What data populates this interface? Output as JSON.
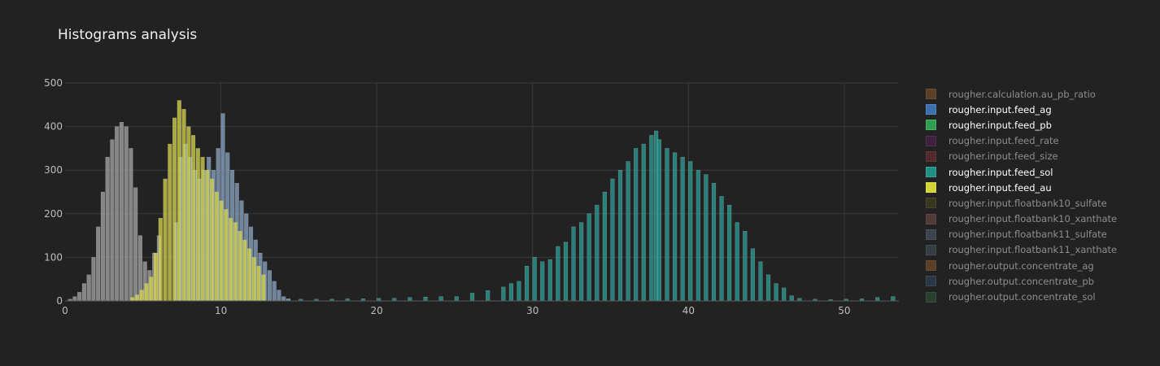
{
  "chart_data": {
    "type": "histogram",
    "title": "Histograms analysis",
    "xlabel": "",
    "ylabel": "",
    "xlim": [
      0,
      53.5
    ],
    "ylim": [
      0,
      500
    ],
    "x_ticks": [
      0,
      10,
      20,
      30,
      40,
      50
    ],
    "y_ticks": [
      0,
      100,
      200,
      300,
      400,
      500
    ],
    "grid": true,
    "legend_position": "right",
    "bars_visible": {
      "bin_width": 0.28,
      "series": [
        {
          "name": "rougher.input.feed_ag",
          "color": "#8aa8c8",
          "bins": [
            [
              7.0,
              180
            ],
            [
              7.3,
              330
            ],
            [
              7.6,
              360
            ],
            [
              7.9,
              330
            ],
            [
              8.2,
              300
            ],
            [
              8.5,
              280
            ],
            [
              8.8,
              300
            ],
            [
              9.1,
              330
            ],
            [
              9.4,
              300
            ],
            [
              9.7,
              350
            ],
            [
              10.0,
              430
            ],
            [
              10.3,
              340
            ],
            [
              10.6,
              300
            ],
            [
              10.9,
              270
            ],
            [
              11.2,
              230
            ],
            [
              11.5,
              200
            ],
            [
              11.8,
              170
            ],
            [
              12.1,
              140
            ],
            [
              12.4,
              110
            ],
            [
              12.7,
              90
            ],
            [
              13.0,
              70
            ],
            [
              13.3,
              45
            ],
            [
              13.6,
              25
            ],
            [
              13.9,
              10
            ],
            [
              14.2,
              5
            ]
          ]
        },
        {
          "name": "rougher.input.feed_pb",
          "color": "#a8a8a8",
          "bins": [
            [
              0.2,
              4
            ],
            [
              0.5,
              10
            ],
            [
              0.8,
              20
            ],
            [
              1.1,
              40
            ],
            [
              1.4,
              60
            ],
            [
              1.7,
              100
            ],
            [
              2.0,
              170
            ],
            [
              2.3,
              250
            ],
            [
              2.6,
              330
            ],
            [
              2.9,
              370
            ],
            [
              3.2,
              400
            ],
            [
              3.5,
              410
            ],
            [
              3.8,
              400
            ],
            [
              4.1,
              350
            ],
            [
              4.4,
              260
            ],
            [
              4.7,
              150
            ],
            [
              5.0,
              90
            ],
            [
              5.3,
              70
            ],
            [
              5.6,
              110
            ],
            [
              5.9,
              150
            ]
          ]
        },
        {
          "name": "rougher.input.feed_sol",
          "color": "#2aa198",
          "bins": [
            [
              14.2,
              3
            ],
            [
              15.0,
              4
            ],
            [
              16.0,
              4
            ],
            [
              17.0,
              4
            ],
            [
              18.0,
              5
            ],
            [
              19.0,
              5
            ],
            [
              20.0,
              6
            ],
            [
              21.0,
              6
            ],
            [
              22.0,
              8
            ],
            [
              23.0,
              9
            ],
            [
              24.0,
              10
            ],
            [
              25.0,
              10
            ],
            [
              26.0,
              18
            ],
            [
              27.0,
              24
            ],
            [
              28.0,
              32
            ],
            [
              28.5,
              40
            ],
            [
              29.0,
              45
            ],
            [
              29.5,
              80
            ],
            [
              30.0,
              100
            ],
            [
              30.5,
              90
            ],
            [
              31.0,
              95
            ],
            [
              31.5,
              125
            ],
            [
              32.0,
              135
            ],
            [
              32.5,
              170
            ],
            [
              33.0,
              180
            ],
            [
              33.5,
              200
            ],
            [
              34.0,
              220
            ],
            [
              34.5,
              250
            ],
            [
              35.0,
              280
            ],
            [
              35.5,
              300
            ],
            [
              36.0,
              320
            ],
            [
              36.5,
              350
            ],
            [
              37.0,
              360
            ],
            [
              37.5,
              380
            ],
            [
              37.8,
              390
            ],
            [
              38.0,
              370
            ],
            [
              38.5,
              350
            ],
            [
              39.0,
              340
            ],
            [
              39.5,
              330
            ],
            [
              40.0,
              320
            ],
            [
              40.5,
              300
            ],
            [
              41.0,
              290
            ],
            [
              41.5,
              270
            ],
            [
              42.0,
              240
            ],
            [
              42.5,
              220
            ],
            [
              43.0,
              180
            ],
            [
              43.5,
              160
            ],
            [
              44.0,
              120
            ],
            [
              44.5,
              90
            ],
            [
              45.0,
              60
            ],
            [
              45.5,
              40
            ],
            [
              46.0,
              30
            ],
            [
              46.5,
              12
            ],
            [
              47.0,
              6
            ],
            [
              48.0,
              4
            ],
            [
              49.0,
              3
            ],
            [
              50.0,
              4
            ],
            [
              51.0,
              5
            ],
            [
              52.0,
              8
            ],
            [
              53.0,
              10
            ]
          ]
        },
        {
          "name": "rougher.input.feed_au",
          "color": "#d8d84a",
          "bins": [
            [
              4.2,
              8
            ],
            [
              4.5,
              14
            ],
            [
              4.8,
              25
            ],
            [
              5.1,
              40
            ],
            [
              5.4,
              55
            ],
            [
              5.7,
              110
            ],
            [
              6.0,
              190
            ],
            [
              6.3,
              280
            ],
            [
              6.6,
              360
            ],
            [
              6.9,
              420
            ],
            [
              7.2,
              460
            ],
            [
              7.5,
              440
            ],
            [
              7.8,
              400
            ],
            [
              8.1,
              380
            ],
            [
              8.4,
              350
            ],
            [
              8.7,
              330
            ],
            [
              9.0,
              300
            ],
            [
              9.3,
              280
            ],
            [
              9.6,
              250
            ],
            [
              9.9,
              230
            ],
            [
              10.2,
              210
            ],
            [
              10.5,
              190
            ],
            [
              10.8,
              180
            ],
            [
              11.1,
              160
            ],
            [
              11.4,
              140
            ],
            [
              11.7,
              120
            ],
            [
              12.0,
              100
            ],
            [
              12.3,
              80
            ],
            [
              12.6,
              60
            ]
          ]
        }
      ]
    },
    "legend_entries": [
      {
        "name": "rougher.calculation.au_pb_ratio",
        "color": "#8a5a2b",
        "visible": false
      },
      {
        "name": "rougher.input.feed_ag",
        "color": "#3a6fb0",
        "visible": true
      },
      {
        "name": "rougher.input.feed_pb",
        "color": "#2e9e4f",
        "visible": true
      },
      {
        "name": "rougher.input.feed_rate",
        "color": "#5a1f5a",
        "visible": false
      },
      {
        "name": "rougher.input.feed_size",
        "color": "#7a2f35",
        "visible": false
      },
      {
        "name": "rougher.input.feed_sol",
        "color": "#1f8f86",
        "visible": true
      },
      {
        "name": "rougher.input.feed_au",
        "color": "#d4d434",
        "visible": true
      },
      {
        "name": "rougher.input.floatbank10_sulfate",
        "color": "#4a4a1a",
        "visible": false
      },
      {
        "name": "rougher.input.floatbank10_xanthate",
        "color": "#7a4f48",
        "visible": false
      },
      {
        "name": "rougher.input.floatbank11_sulfate",
        "color": "#4f5f73",
        "visible": false
      },
      {
        "name": "rougher.input.floatbank11_xanthate",
        "color": "#45525f",
        "visible": false
      },
      {
        "name": "rougher.output.concentrate_ag",
        "color": "#8a5a2b",
        "visible": false
      },
      {
        "name": "rougher.output.concentrate_pb",
        "color": "#2f4a66",
        "visible": false
      },
      {
        "name": "rougher.output.concentrate_sol",
        "color": "#2f5a3a",
        "visible": false
      }
    ]
  }
}
